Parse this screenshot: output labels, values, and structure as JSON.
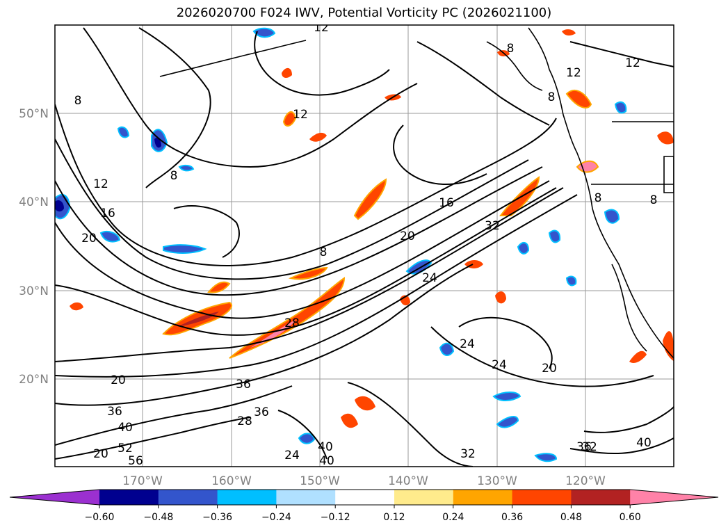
{
  "title": "2026020700 F024 IWV, Potential Vorticity PC (2026021100)",
  "map": {
    "lat_labels": [
      "50°N",
      "40°N",
      "30°N",
      "20°N"
    ],
    "lon_labels": [
      "170°W",
      "160°W",
      "150°W",
      "140°W",
      "130°W",
      "120°W"
    ],
    "contour_labels": [
      "12",
      "8",
      "8",
      "12",
      "8",
      "8",
      "12",
      "12",
      "8",
      "8",
      "12",
      "16",
      "20",
      "8",
      "16",
      "20",
      "24",
      "32",
      "28",
      "20",
      "24",
      "24",
      "20",
      "36",
      "36",
      "36",
      "40",
      "24",
      "40",
      "28",
      "32",
      "40",
      "36",
      "40",
      "32",
      "52",
      "56",
      "20"
    ]
  },
  "colorbar": {
    "ticks": [
      "−0.60",
      "−0.48",
      "−0.36",
      "−0.24",
      "−0.12",
      "0.12",
      "0.24",
      "0.36",
      "0.48",
      "0.60"
    ],
    "colors": [
      "#9b30d0",
      "#00008f",
      "#3355cc",
      "#00bfff",
      "#b0e0ff",
      "#ffffff",
      "#ffeb8c",
      "#ffa500",
      "#ff4500",
      "#b22222",
      "#ff82a8"
    ]
  }
}
